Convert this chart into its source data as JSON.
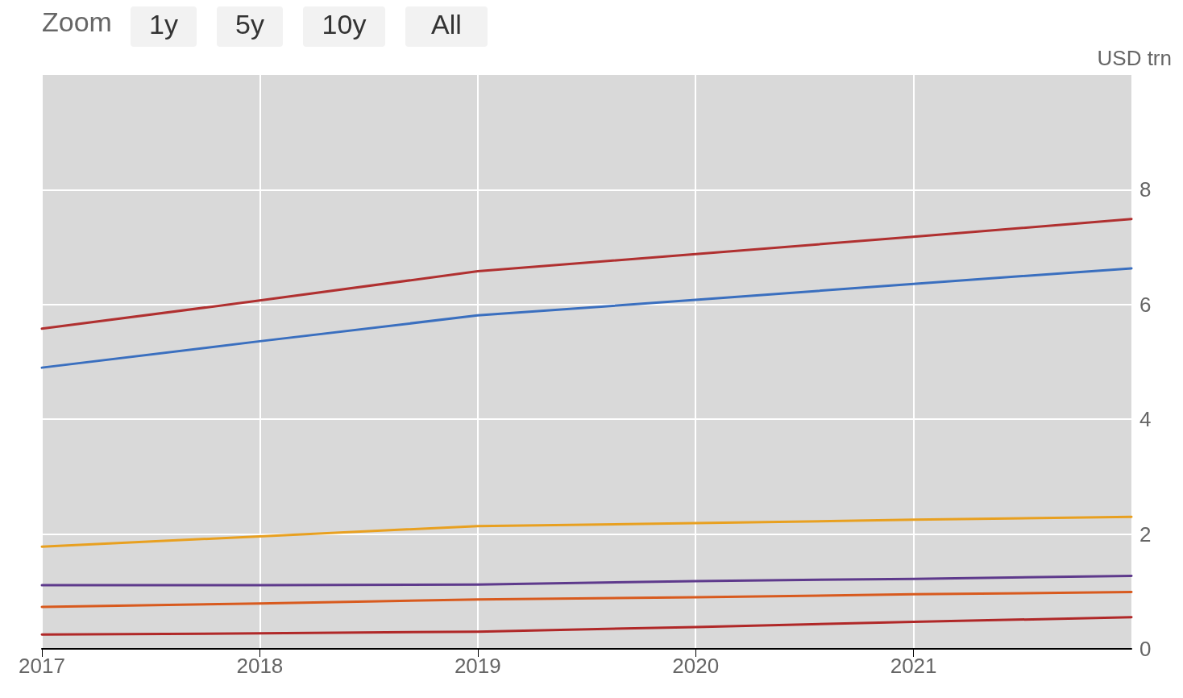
{
  "chart_data": {
    "type": "line",
    "ylabel": "USD trn",
    "annotations": [
      "Zoom",
      "1y",
      "5y",
      "10y",
      "All"
    ],
    "x": [
      2017,
      2018,
      2019,
      2020,
      2021,
      2022
    ],
    "xlim": [
      2017,
      2022
    ],
    "xticks": [
      2017,
      2018,
      2019,
      2020,
      2021
    ],
    "ylim": [
      0,
      10
    ],
    "yticks": [
      0,
      2,
      4,
      6,
      8
    ],
    "grid": true,
    "marker": "none",
    "line_style": "solid",
    "series": [
      {
        "color": "#b03030",
        "values": [
          5.58,
          6.07,
          6.58,
          6.88,
          7.18,
          7.49
        ]
      },
      {
        "color": "#3a6fbf",
        "values": [
          4.9,
          5.36,
          5.81,
          6.08,
          6.36,
          6.63
        ]
      },
      {
        "color": "#e8a020",
        "values": [
          1.78,
          1.96,
          2.14,
          2.19,
          2.25,
          2.3
        ]
      },
      {
        "color": "#5e3a8c",
        "values": [
          1.11,
          1.11,
          1.12,
          1.18,
          1.22,
          1.27
        ]
      },
      {
        "color": "#d85a1e",
        "values": [
          0.73,
          0.79,
          0.86,
          0.9,
          0.95,
          0.99
        ]
      },
      {
        "color": "#b02828",
        "values": [
          0.25,
          0.27,
          0.3,
          0.38,
          0.47,
          0.55
        ]
      }
    ]
  }
}
